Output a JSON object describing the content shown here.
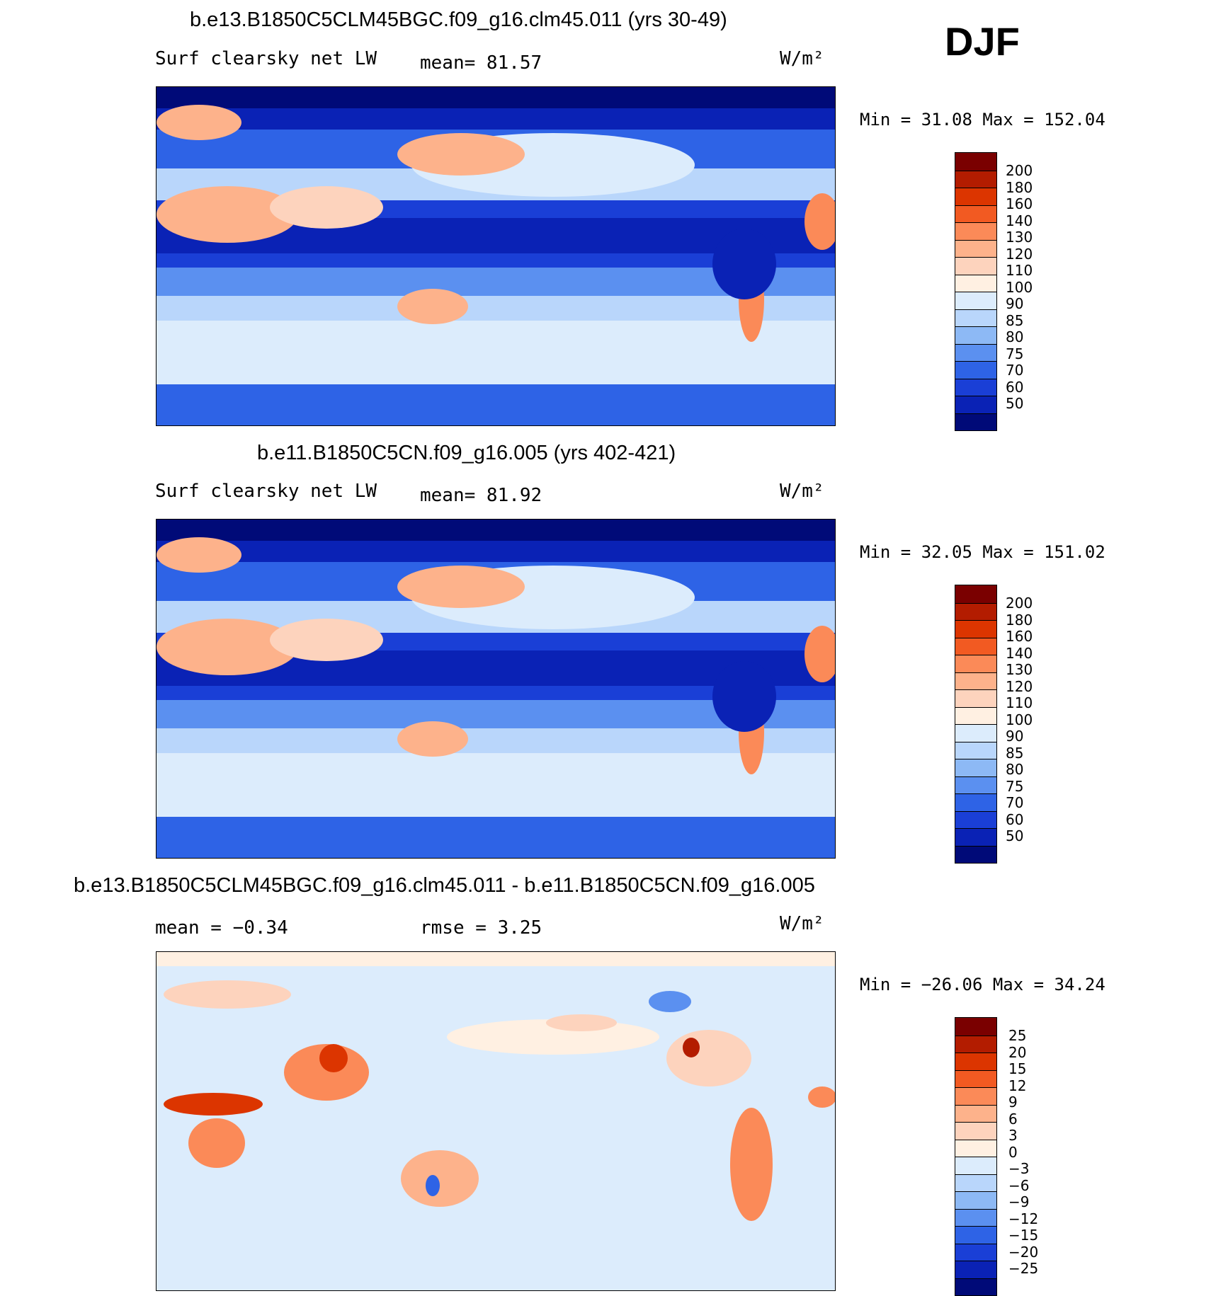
{
  "season": "DJF",
  "panels": [
    {
      "title": "b.e13.B1850C5CLM45BGC.f09_g16.clm45.011 (yrs 30-49)",
      "variable": "Surf clearsky net LW",
      "stat1": "mean=   81.57",
      "units": "W/m²",
      "minmax": "Min =   31.08 Max = 152.04",
      "colorbar": {
        "labels": [
          "200",
          "180",
          "160",
          "140",
          "130",
          "120",
          "110",
          "100",
          "90",
          "85",
          "80",
          "75",
          "70",
          "60",
          "50"
        ],
        "colors": [
          "#7a0000",
          "#b31c00",
          "#dc3500",
          "#f25a22",
          "#fb8a58",
          "#fdb28b",
          "#fdd3bd",
          "#fff0e2",
          "#dcecfc",
          "#b9d6fb",
          "#8db9f5",
          "#5b90f0",
          "#2e63e6",
          "#1a3fd6",
          "#0a22b5",
          "#000a78"
        ]
      },
      "chart_data": {
        "type": "heatmap",
        "title": "b.e13.B1850C5CLM45BGC.f09_g16.clm45.011 (yrs 30-49)",
        "variable": "Surf clearsky net LW",
        "mean": 81.57,
        "min": 31.08,
        "max": 152.04,
        "units": "W/m2",
        "levels": [
          50,
          60,
          70,
          75,
          80,
          85,
          90,
          100,
          110,
          120,
          130,
          140,
          160,
          180,
          200
        ]
      }
    },
    {
      "title": "b.e11.B1850C5CN.f09_g16.005 (yrs 402-421)",
      "variable": "Surf clearsky net LW",
      "stat1": "mean=   81.92",
      "units": "W/m²",
      "minmax": "Min =   32.05 Max = 151.02",
      "colorbar": {
        "labels": [
          "200",
          "180",
          "160",
          "140",
          "130",
          "120",
          "110",
          "100",
          "90",
          "85",
          "80",
          "75",
          "70",
          "60",
          "50"
        ],
        "colors": [
          "#7a0000",
          "#b31c00",
          "#dc3500",
          "#f25a22",
          "#fb8a58",
          "#fdb28b",
          "#fdd3bd",
          "#fff0e2",
          "#dcecfc",
          "#b9d6fb",
          "#8db9f5",
          "#5b90f0",
          "#2e63e6",
          "#1a3fd6",
          "#0a22b5",
          "#000a78"
        ]
      },
      "chart_data": {
        "type": "heatmap",
        "title": "b.e11.B1850C5CN.f09_g16.005 (yrs 402-421)",
        "variable": "Surf clearsky net LW",
        "mean": 81.92,
        "min": 32.05,
        "max": 151.02,
        "units": "W/m2",
        "levels": [
          50,
          60,
          70,
          75,
          80,
          85,
          90,
          100,
          110,
          120,
          130,
          140,
          160,
          180,
          200
        ]
      }
    },
    {
      "title": "b.e13.B1850C5CLM45BGC.f09_g16.clm45.011 - b.e11.B1850C5CN.f09_g16.005",
      "stat1": "mean =   −0.34",
      "stat2": "rmse =    3.25",
      "units": "W/m²",
      "minmax": "Min = −26.06 Max =   34.24",
      "colorbar": {
        "labels": [
          "25",
          "20",
          "15",
          "12",
          "9",
          "6",
          "3",
          "0",
          "−3",
          "−6",
          "−9",
          "−12",
          "−15",
          "−20",
          "−25"
        ],
        "colors": [
          "#7a0000",
          "#b31c00",
          "#dc3500",
          "#f25a22",
          "#fb8a58",
          "#fdb28b",
          "#fdd3bd",
          "#fff0e2",
          "#dcecfc",
          "#b9d6fb",
          "#8db9f5",
          "#5b90f0",
          "#2e63e6",
          "#1a3fd6",
          "#0a22b5",
          "#000a78"
        ]
      },
      "chart_data": {
        "type": "heatmap",
        "title": "b.e13.B1850C5CLM45BGC.f09_g16.clm45.011 - b.e11.B1850C5CN.f09_g16.005",
        "mean": -0.34,
        "rmse": 3.25,
        "min": -26.06,
        "max": 34.24,
        "units": "W/m2",
        "levels": [
          -25,
          -20,
          -15,
          -12,
          -9,
          -6,
          -3,
          0,
          3,
          6,
          9,
          12,
          15,
          20,
          25
        ]
      }
    }
  ]
}
